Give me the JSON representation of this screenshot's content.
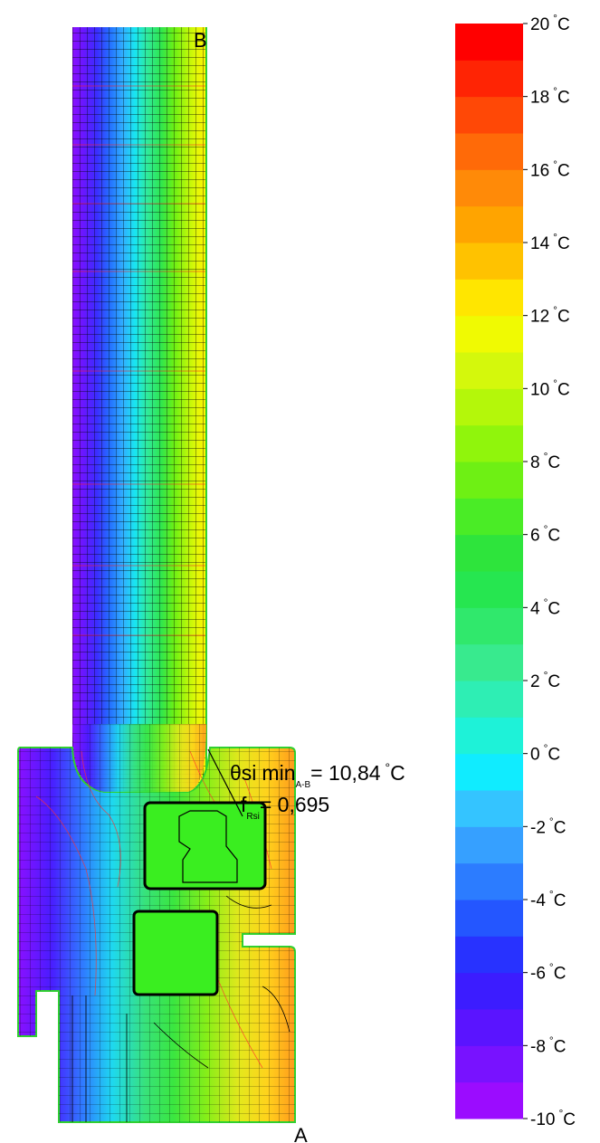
{
  "points": {
    "a": "A",
    "b": "B"
  },
  "annotation": {
    "theta_symbol": "θ",
    "theta_sub": "si",
    "theta_min": "min",
    "theta_range": "A-B",
    "theta_value": "= 10,84",
    "deg": "°",
    "deg_unit": "C",
    "f_symbol": "f",
    "f_sub": "Rsi",
    "f_value": "= 0,695"
  },
  "legend": {
    "bands": [
      "#9b0cff",
      "#7812ff",
      "#5a14ff",
      "#3c1cff",
      "#2832ff",
      "#2456ff",
      "#2c7cff",
      "#36a0ff",
      "#34c4ff",
      "#10ecff",
      "#1ef2d8",
      "#2eeeb4",
      "#38ea8e",
      "#30e86c",
      "#26e650",
      "#2ee43c",
      "#4aec26",
      "#6ef014",
      "#90f50c",
      "#b4f70a",
      "#d4f80c",
      "#f0fa02",
      "#ffe600",
      "#ffc200",
      "#ffa400",
      "#ff8a08",
      "#ff6a08",
      "#ff4806",
      "#ff2404",
      "#ff0000"
    ],
    "ticks": [
      {
        "value": 20,
        "text": "20"
      },
      {
        "value": 18,
        "text": "18"
      },
      {
        "value": 16,
        "text": "16"
      },
      {
        "value": 14,
        "text": "14"
      },
      {
        "value": 12,
        "text": "12"
      },
      {
        "value": 10,
        "text": "10"
      },
      {
        "value": 8,
        "text": "8"
      },
      {
        "value": 6,
        "text": "6"
      },
      {
        "value": 4,
        "text": "4"
      },
      {
        "value": 2,
        "text": "2"
      },
      {
        "value": 0,
        "text": "0"
      },
      {
        "value": -2,
        "text": "-2"
      },
      {
        "value": -4,
        "text": "-4"
      },
      {
        "value": -6,
        "text": "-6"
      },
      {
        "value": -8,
        "text": "-8"
      },
      {
        "value": -10,
        "text": "-10"
      }
    ],
    "deg": "°",
    "unit": "C",
    "min": -10,
    "max": 20
  }
}
